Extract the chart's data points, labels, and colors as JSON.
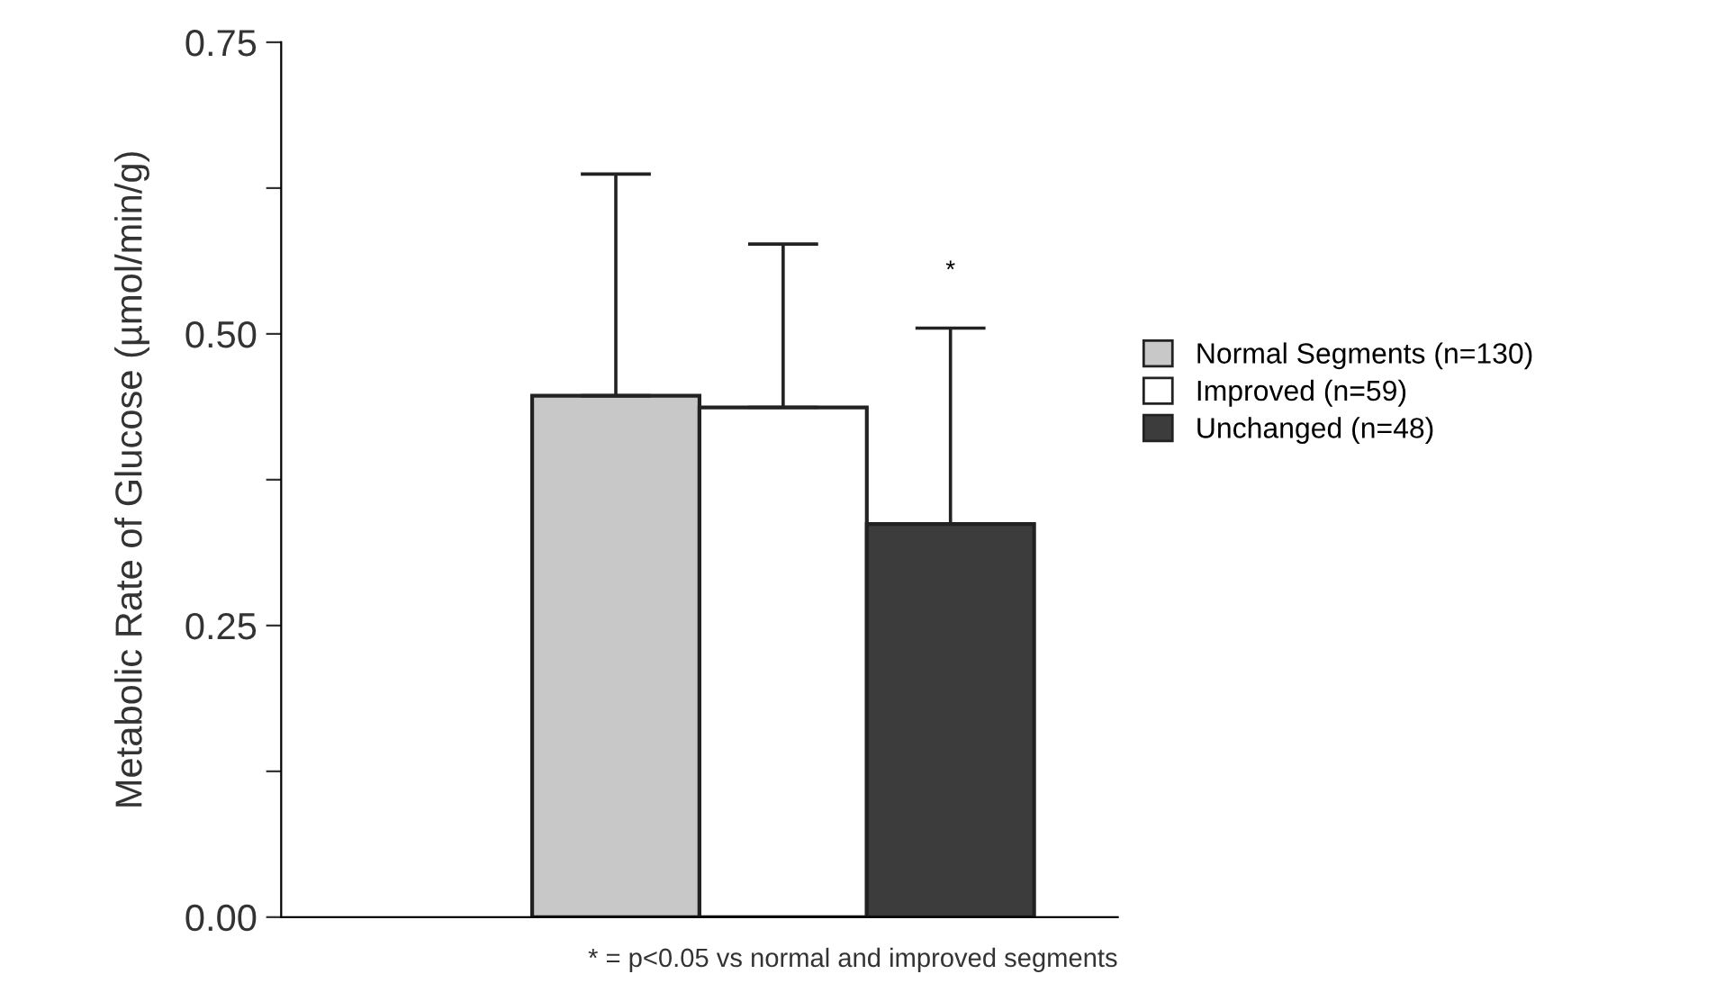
{
  "chart_data": {
    "type": "bar",
    "ylabel": "Metabolic Rate of Glucose (µmol/min/g)",
    "categories": [
      null
    ],
    "series": [
      {
        "name": "Normal Segments (n=130)",
        "color": "#c8c8c8",
        "values": [
          0.447
        ],
        "errors": [
          [
            0.447,
            0.637
          ]
        ]
      },
      {
        "name": "Improved (n=59)",
        "color": "#ffffff",
        "values": [
          0.437
        ],
        "errors": [
          [
            0.437,
            0.577
          ]
        ]
      },
      {
        "name": "Unchanged (n=48)",
        "color": "#3c3c3c",
        "values": [
          0.337
        ],
        "errors": [
          [
            0.337,
            0.505
          ]
        ]
      }
    ],
    "ylim": [
      0,
      0.75
    ],
    "yticks": [
      {
        "value": 0,
        "label": "0.00"
      },
      {
        "value": 0.125,
        "label": null
      },
      {
        "value": 0.25,
        "label": "0.25"
      },
      {
        "value": 0.375,
        "label": null
      },
      {
        "value": 0.5,
        "label": "0.50"
      },
      {
        "value": 0.625,
        "label": null
      },
      {
        "value": 0.75,
        "label": "0.75"
      }
    ],
    "annotations": [
      "*",
      "* = p<0.05 vs normal and improved segments"
    ],
    "legend": "right",
    "grid": false
  }
}
